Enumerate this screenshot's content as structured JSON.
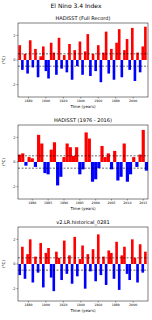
{
  "title": "El Nino 3.4 Index",
  "chart_data": [
    {
      "type": "bar",
      "title": "HADISST (Full Record)",
      "x_label": "Time (years)",
      "y_label": "(°C)",
      "x": [
        1870,
        1873,
        1876,
        1879,
        1882,
        1885,
        1888,
        1891,
        1894,
        1897,
        1900,
        1903,
        1906,
        1909,
        1912,
        1915,
        1918,
        1921,
        1924,
        1927,
        1930,
        1933,
        1936,
        1939,
        1942,
        1945,
        1948,
        1951,
        1954,
        1957,
        1960,
        1963,
        1966,
        1969,
        1972,
        1975,
        1978,
        1981,
        1984,
        1987,
        1990,
        1993,
        1996,
        1999,
        2002,
        2005,
        2008,
        2011,
        2014
      ],
      "values": [
        1.2,
        -0.8,
        0.5,
        -1.1,
        1.6,
        -0.6,
        0.9,
        -1.4,
        0.3,
        1.1,
        -0.9,
        -1.5,
        1.4,
        0.6,
        -1.2,
        1.8,
        -0.7,
        0.4,
        -1.0,
        1.3,
        -1.6,
        0.8,
        -0.5,
        1.5,
        -1.2,
        0.7,
        2.1,
        -1.3,
        0.5,
        -0.9,
        1.2,
        -1.8,
        0.6,
        2.3,
        -1.1,
        0.9,
        -1.6,
        1.4,
        2.5,
        -1.4,
        0.8,
        1.7,
        -0.8,
        2.6,
        -1.7,
        0.6,
        -1.0,
        1.1,
        2.7
      ],
      "colors": [
        "#ff0000",
        "#0000ff",
        "#ff0000",
        "#0000ff",
        "#ff0000",
        "#0000ff",
        "#ff0000",
        "#0000ff",
        "#ff0000",
        "#ff0000",
        "#0000ff",
        "#0000ff",
        "#ff0000",
        "#ff0000",
        "#0000ff",
        "#ff0000",
        "#0000ff",
        "#ff0000",
        "#0000ff",
        "#ff0000",
        "#0000ff",
        "#ff0000",
        "#0000ff",
        "#ff0000",
        "#0000ff",
        "#ff0000",
        "#ff0000",
        "#0000ff",
        "#ff0000",
        "#0000ff",
        "#ff0000",
        "#0000ff",
        "#ff0000",
        "#ff0000",
        "#0000ff",
        "#ff0000",
        "#0000ff",
        "#ff0000",
        "#ff0000",
        "#0000ff",
        "#ff0000",
        "#ff0000",
        "#0000ff",
        "#ff0000",
        "#0000ff",
        "#ff0000",
        "#0000ff",
        "#ff0000",
        "#ff0000"
      ],
      "reference_lines": [
        0.5,
        -0.5
      ],
      "xlim": [
        1868,
        2017
      ],
      "xticks": [
        1880,
        1900,
        1920,
        1940,
        1960,
        1980,
        2000
      ],
      "ylim": [
        -3,
        3
      ],
      "yticks": [
        -2,
        0,
        2
      ]
    },
    {
      "type": "bar",
      "title": "HADISST (1976 - 2016)",
      "x_label": "Time (years)",
      "y_label": "(°C)",
      "x": [
        1976,
        1977,
        1978,
        1979,
        1980,
        1981,
        1982,
        1983,
        1984,
        1985,
        1986,
        1987,
        1988,
        1989,
        1990,
        1991,
        1992,
        1993,
        1994,
        1995,
        1996,
        1997,
        1998,
        1999,
        2000,
        2001,
        2002,
        2003,
        2004,
        2005,
        2006,
        2007,
        2008,
        2009,
        2010,
        2011,
        2012,
        2013,
        2014,
        2015,
        2016
      ],
      "values": [
        0.6,
        0.7,
        -0.3,
        0.4,
        0.3,
        -0.4,
        2.2,
        1.5,
        -0.9,
        -1.0,
        1.0,
        1.6,
        -1.9,
        -1.2,
        0.4,
        1.5,
        1.2,
        0.5,
        1.2,
        -1.0,
        -0.6,
        2.4,
        1.9,
        -1.6,
        -1.4,
        -0.5,
        1.3,
        0.4,
        0.7,
        -0.6,
        0.9,
        -1.5,
        -1.2,
        1.5,
        -1.6,
        -1.0,
        0.4,
        -0.4,
        0.6,
        2.6,
        -0.7
      ],
      "colors": [
        "#ff0000",
        "#ff0000",
        "#0000ff",
        "#ff0000",
        "#ff0000",
        "#0000ff",
        "#ff0000",
        "#ff0000",
        "#0000ff",
        "#0000ff",
        "#ff0000",
        "#ff0000",
        "#0000ff",
        "#0000ff",
        "#ff0000",
        "#ff0000",
        "#ff0000",
        "#ff0000",
        "#ff0000",
        "#0000ff",
        "#0000ff",
        "#ff0000",
        "#ff0000",
        "#0000ff",
        "#0000ff",
        "#0000ff",
        "#ff0000",
        "#ff0000",
        "#ff0000",
        "#0000ff",
        "#ff0000",
        "#0000ff",
        "#0000ff",
        "#ff0000",
        "#0000ff",
        "#0000ff",
        "#ff0000",
        "#0000ff",
        "#ff0000",
        "#ff0000",
        "#0000ff"
      ],
      "reference_lines": [
        0.5,
        -0.5
      ],
      "xlim": [
        1975.5,
        2016.5
      ],
      "xticks": [
        1980,
        1985,
        1990,
        1995,
        2000,
        2005,
        2010,
        2015
      ],
      "ylim": [
        -3,
        3
      ],
      "yticks": [
        -2,
        0,
        2
      ]
    },
    {
      "type": "bar",
      "title": "v2.LR.historical_0281",
      "x_label": "Time (years)",
      "y_label": "(°C)",
      "x": [
        1870,
        1873,
        1876,
        1879,
        1882,
        1885,
        1888,
        1891,
        1894,
        1897,
        1900,
        1903,
        1906,
        1909,
        1912,
        1915,
        1918,
        1921,
        1924,
        1927,
        1930,
        1933,
        1936,
        1939,
        1942,
        1945,
        1948,
        1951,
        1954,
        1957,
        1960,
        1963,
        1966,
        1969,
        1972,
        1975,
        1978,
        1981,
        1984,
        1987,
        1990,
        1993,
        1996,
        1999,
        2002,
        2005,
        2008,
        2011,
        2014
      ],
      "values": [
        -0.9,
        1.4,
        -1.2,
        0.8,
        2.0,
        -1.5,
        0.6,
        -0.7,
        1.7,
        -1.9,
        0.9,
        1.3,
        -1.1,
        -2.2,
        1.0,
        0.5,
        -1.3,
        1.9,
        -0.8,
        0.7,
        -1.6,
        2.2,
        -1.0,
        0.4,
        1.5,
        -2.0,
        0.8,
        -0.6,
        1.2,
        -1.4,
        2.4,
        -0.9,
        0.6,
        -1.7,
        1.1,
        0.9,
        -1.2,
        1.8,
        -2.1,
        0.7,
        1.4,
        -0.8,
        -1.3,
        2.0,
        0.5,
        -1.5,
        1.6,
        -0.7,
        1.0
      ],
      "colors": [
        "#0000ff",
        "#ff0000",
        "#0000ff",
        "#ff0000",
        "#ff0000",
        "#0000ff",
        "#ff0000",
        "#0000ff",
        "#ff0000",
        "#0000ff",
        "#ff0000",
        "#ff0000",
        "#0000ff",
        "#0000ff",
        "#ff0000",
        "#ff0000",
        "#0000ff",
        "#ff0000",
        "#0000ff",
        "#ff0000",
        "#0000ff",
        "#ff0000",
        "#0000ff",
        "#ff0000",
        "#ff0000",
        "#0000ff",
        "#ff0000",
        "#0000ff",
        "#ff0000",
        "#0000ff",
        "#ff0000",
        "#0000ff",
        "#ff0000",
        "#0000ff",
        "#ff0000",
        "#ff0000",
        "#0000ff",
        "#ff0000",
        "#0000ff",
        "#ff0000",
        "#ff0000",
        "#0000ff",
        "#0000ff",
        "#ff0000",
        "#ff0000",
        "#0000ff",
        "#ff0000",
        "#0000ff",
        "#ff0000"
      ],
      "reference_lines": [
        0.5,
        -0.5
      ],
      "xlim": [
        1868,
        2017
      ],
      "xticks": [
        1880,
        1900,
        1920,
        1940,
        1960,
        1980,
        2000
      ],
      "ylim": [
        -3,
        3
      ],
      "yticks": [
        -2,
        0,
        2
      ]
    }
  ]
}
